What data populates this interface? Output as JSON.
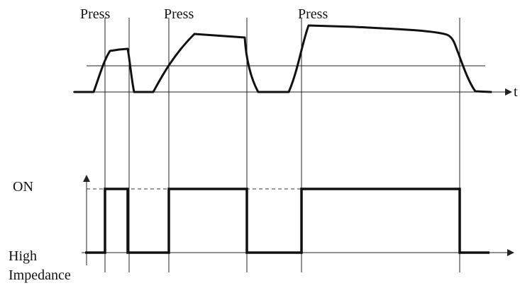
{
  "labels": {
    "press_1": "Press",
    "press_2": "Press",
    "press_3": "Press",
    "time_axis": "t",
    "state_on": "ON",
    "state_off_line1": "High",
    "state_off_line2": "Impedance"
  },
  "colors": {
    "ink": "#111111",
    "background": "#ffffff"
  }
}
